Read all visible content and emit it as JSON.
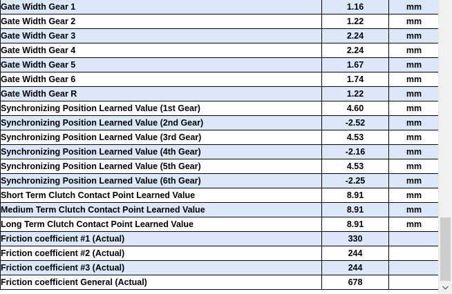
{
  "rows": [
    {
      "name": "Gate Width Gear 1",
      "value": "1.16",
      "unit": "mm"
    },
    {
      "name": "Gate Width Gear 2",
      "value": "1.22",
      "unit": "mm"
    },
    {
      "name": "Gate Width Gear 3",
      "value": "2.24",
      "unit": "mm"
    },
    {
      "name": "Gate Width Gear 4",
      "value": "2.24",
      "unit": "mm"
    },
    {
      "name": "Gate Width Gear 5",
      "value": "1.67",
      "unit": "mm"
    },
    {
      "name": "Gate Width Gear 6",
      "value": "1.74",
      "unit": "mm"
    },
    {
      "name": "Gate Width Gear R",
      "value": "1.22",
      "unit": "mm"
    },
    {
      "name": "Synchronizing Position Learned Value (1st Gear)",
      "value": "4.60",
      "unit": "mm"
    },
    {
      "name": "Synchronizing Position Learned Value (2nd Gear)",
      "value": "-2.52",
      "unit": "mm"
    },
    {
      "name": "Synchronizing Position Learned Value (3rd Gear)",
      "value": "4.53",
      "unit": "mm"
    },
    {
      "name": "Synchronizing Position Learned Value (4th Gear)",
      "value": "-2.16",
      "unit": "mm"
    },
    {
      "name": "Synchronizing Position Learned Value (5th Gear)",
      "value": "4.53",
      "unit": "mm"
    },
    {
      "name": "Synchronizing Position Learned Value (6th Gear)",
      "value": "-2.25",
      "unit": "mm"
    },
    {
      "name": "Short Term Clutch Contact Point Learned Value",
      "value": "8.91",
      "unit": "mm"
    },
    {
      "name": "Medium Term Clutch Contact Point Learned Value",
      "value": "8.91",
      "unit": "mm"
    },
    {
      "name": "Long Term Clutch Contact Point Learned Value",
      "value": "8.91",
      "unit": "mm"
    },
    {
      "name": "Friction coefficient  #1 (Actual)",
      "value": "330",
      "unit": ""
    },
    {
      "name": "Friction coefficient  #2 (Actual)",
      "value": "244",
      "unit": ""
    },
    {
      "name": "Friction coefficient  #3 (Actual)",
      "value": "244",
      "unit": ""
    },
    {
      "name": "Friction coefficient  General (Actual)",
      "value": "678",
      "unit": ""
    }
  ],
  "colors": {
    "row_alt": "#dbe8f9",
    "row_base": "#ffffff",
    "grid_line": "#000000",
    "scrollbar_track": "#f0f0f0",
    "scrollbar_thumb": "#cdcdcd"
  },
  "scrollbar": {
    "icon": "chevron-down-icon"
  }
}
